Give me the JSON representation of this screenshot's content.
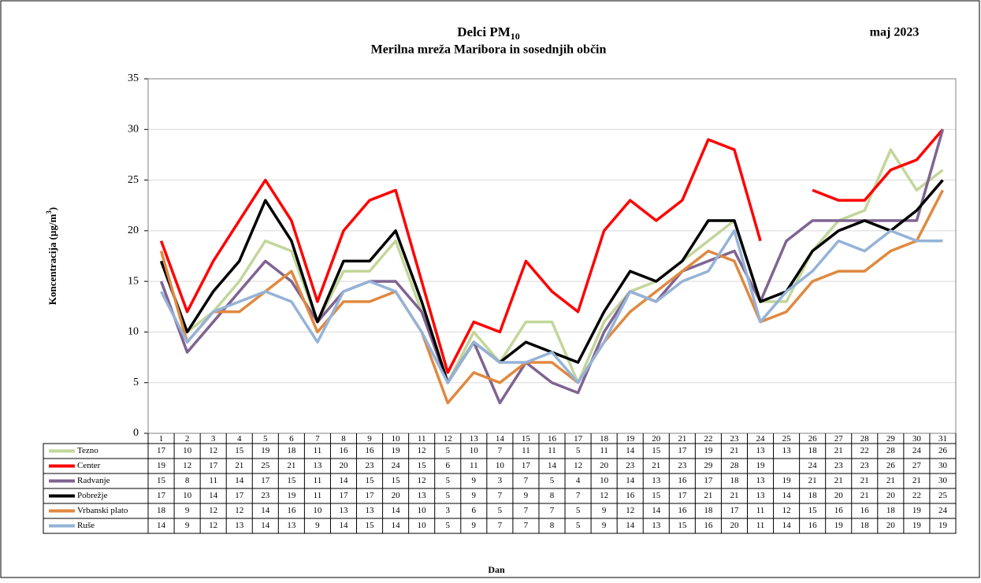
{
  "chart_data": {
    "type": "line",
    "title": "Delci PM",
    "title_subscript": "10",
    "subtitle": "Merilna mreža Maribora in sosednjih občin",
    "period": "maj 2023",
    "ylabel": "Koncentracija (µg/m",
    "ylabel_superscript": "3",
    "ylabel_end": ")",
    "xlabel": "Dan",
    "categories": [
      1,
      2,
      3,
      4,
      5,
      6,
      7,
      8,
      9,
      10,
      11,
      12,
      13,
      14,
      15,
      16,
      17,
      18,
      19,
      20,
      21,
      22,
      23,
      24,
      25,
      26,
      27,
      28,
      29,
      30,
      31
    ],
    "ylim": [
      0,
      35
    ],
    "yticks": [
      0,
      5,
      10,
      15,
      20,
      25,
      30,
      35
    ],
    "grid": true,
    "series": [
      {
        "name": "Tezno",
        "color": "#c3d69b",
        "values": [
          17,
          10,
          12,
          15,
          19,
          18,
          11,
          16,
          16,
          19,
          12,
          5,
          10,
          7,
          11,
          11,
          5,
          11,
          14,
          15,
          17,
          19,
          21,
          13,
          13,
          18,
          21,
          22,
          28,
          24,
          26
        ]
      },
      {
        "name": "Center",
        "color": "#ff0000",
        "values": [
          19,
          12,
          17,
          21,
          25,
          21,
          13,
          20,
          23,
          24,
          15,
          6,
          11,
          10,
          17,
          14,
          12,
          20,
          23,
          21,
          23,
          29,
          28,
          19,
          null,
          24,
          23,
          23,
          26,
          27,
          30
        ]
      },
      {
        "name": "Radvanje",
        "color": "#7f6491",
        "values": [
          15,
          8,
          11,
          14,
          17,
          15,
          11,
          14,
          15,
          15,
          12,
          5,
          9,
          3,
          7,
          5,
          4,
          10,
          14,
          13,
          16,
          17,
          18,
          13,
          19,
          21,
          21,
          21,
          21,
          21,
          30
        ]
      },
      {
        "name": "Pobrežje",
        "color": "#000000",
        "values": [
          17,
          10,
          14,
          17,
          23,
          19,
          11,
          17,
          17,
          20,
          13,
          5,
          9,
          7,
          9,
          8,
          7,
          12,
          16,
          15,
          17,
          21,
          21,
          13,
          14,
          18,
          20,
          21,
          20,
          22,
          25
        ]
      },
      {
        "name": "Vrbanski plato",
        "color": "#e0893f",
        "values": [
          18,
          9,
          12,
          12,
          14,
          16,
          10,
          13,
          13,
          14,
          10,
          3,
          6,
          5,
          7,
          7,
          5,
          9,
          12,
          14,
          16,
          18,
          17,
          11,
          12,
          15,
          16,
          16,
          18,
          19,
          24
        ]
      },
      {
        "name": "Ruše",
        "color": "#95b3d7",
        "values": [
          14,
          9,
          12,
          13,
          14,
          13,
          9,
          14,
          15,
          14,
          10,
          5,
          9,
          7,
          7,
          8,
          5,
          9,
          14,
          13,
          15,
          16,
          20,
          11,
          14,
          16,
          19,
          18,
          20,
          19,
          19
        ]
      }
    ]
  }
}
